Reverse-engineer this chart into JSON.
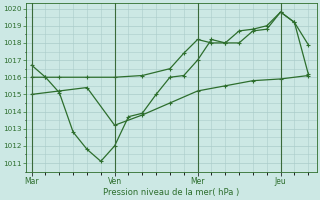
{
  "background_color": "#cce8e4",
  "grid_color": "#aaccca",
  "line_color": "#2d6e2d",
  "xlabel": "Pression niveau de la mer( hPa )",
  "ylim": [
    1010.5,
    1020.3
  ],
  "yticks": [
    1011,
    1012,
    1013,
    1014,
    1015,
    1016,
    1017,
    1018,
    1019,
    1020
  ],
  "xtick_labels": [
    "Mar",
    "Ven",
    "Mer",
    "Jeu"
  ],
  "xtick_positions": [
    0,
    3,
    6,
    9
  ],
  "vlines": [
    0,
    3,
    6,
    9
  ],
  "xmin": -0.2,
  "xmax": 10.3,
  "series1_x": [
    0,
    0.5,
    1.0,
    1.5,
    2.0,
    2.5,
    3.0,
    3.5,
    4.0,
    4.5,
    5.0,
    5.5,
    6.0,
    6.5,
    7.0,
    7.5,
    8.0,
    8.5,
    9.0,
    9.5,
    10.0
  ],
  "series1_y": [
    1016.7,
    1016.0,
    1015.1,
    1012.8,
    1011.8,
    1011.1,
    1012.0,
    1013.7,
    1013.9,
    1015.0,
    1016.0,
    1016.1,
    1017.0,
    1018.2,
    1018.0,
    1018.0,
    1018.7,
    1018.8,
    1019.8,
    1019.2,
    1017.9
  ],
  "series2_x": [
    0,
    0.5,
    1.0,
    2.0,
    3.0,
    4.0,
    5.0,
    5.5,
    6.0,
    6.5,
    7.0,
    7.5,
    8.0,
    8.5,
    9.0,
    9.5,
    10.0
  ],
  "series2_y": [
    1016.0,
    1016.0,
    1016.0,
    1016.0,
    1016.0,
    1016.1,
    1016.5,
    1017.4,
    1018.2,
    1018.0,
    1018.0,
    1018.7,
    1018.8,
    1019.0,
    1019.8,
    1019.2,
    1016.2
  ],
  "series3_x": [
    0,
    1.0,
    2.0,
    3.0,
    4.0,
    5.0,
    6.0,
    7.0,
    8.0,
    9.0,
    10.0
  ],
  "series3_y": [
    1015.0,
    1015.2,
    1015.4,
    1013.2,
    1013.8,
    1014.5,
    1015.2,
    1015.5,
    1015.8,
    1015.9,
    1016.1
  ]
}
